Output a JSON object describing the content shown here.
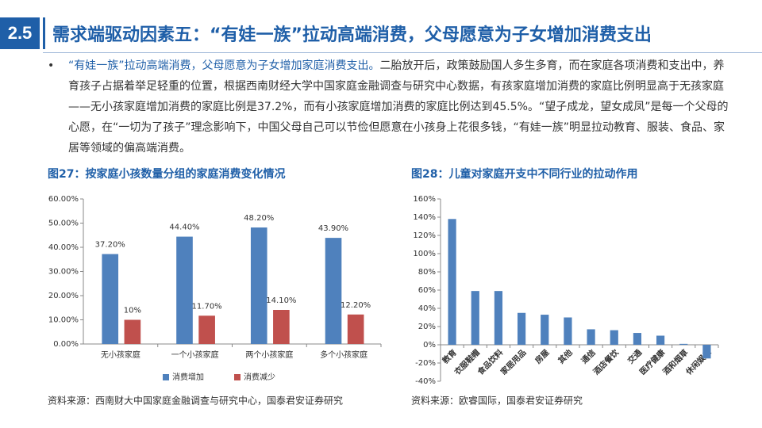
{
  "header": {
    "number": "2.5",
    "title": "需求端驱动因素五：“有娃一族”拉动高端消费，父母愿意为子女增加消费支出"
  },
  "paragraph": {
    "bullet": "•",
    "lead": "“有娃一族”拉动高端消费，父母愿意为子女增加家庭消费支出。",
    "body": "二胎放开后，政策鼓励国人多生多育，而在家庭各项消费和支出中，养育孩子占据着举足轻重的位置，根据西南财经大学中国家庭金融调查与研究中心数据，有孩家庭增加消费的家庭比例明显高于无孩家庭——无小孩家庭增加消费的家庭比例是37.2%，而有小孩家庭增加消费的家庭比例达到45.5%。“望子成龙，望女成凤”是每一个父母的心愿，在“一切为了孩子”理念影响下，中国父母自己可以节俭但愿意在小孩身上花很多钱，“有娃一族”明显拉动教育、服装、食品、家居等领域的偏高端消费。"
  },
  "chart_data": [
    {
      "type": "bar",
      "title": "图27：按家庭小孩数量分组的家庭消费变化情况",
      "categories": [
        "无小孩家庭",
        "一个小孩家庭",
        "两个小孩家庭",
        "多个小孩家庭"
      ],
      "series": [
        {
          "name": "消费增加",
          "color": "#4f81bd",
          "values": [
            37.2,
            44.4,
            48.2,
            43.9
          ],
          "value_labels": [
            "37.20%",
            "44.40%",
            "48.20%",
            "43.90%"
          ]
        },
        {
          "name": "消费减少",
          "color": "#c0504d",
          "values": [
            10,
            11.7,
            14.1,
            12.2
          ],
          "value_labels": [
            "10%",
            "11.70%",
            "14.10%",
            "12.20%"
          ]
        }
      ],
      "ylim": [
        0,
        60
      ],
      "yticks": [
        {
          "value": 0,
          "label": "0.00%"
        },
        {
          "value": 10,
          "label": "10.00%"
        },
        {
          "value": 20,
          "label": "20.00%"
        },
        {
          "value": 30,
          "label": "30.00%"
        },
        {
          "value": 40,
          "label": "40.00%"
        },
        {
          "value": 50,
          "label": "50.00%"
        },
        {
          "value": 60,
          "label": "60.00%"
        }
      ],
      "legend": "bottom",
      "source": "资料来源：西南财大中国家庭金融调查与研究中心，国泰君安证券研究"
    },
    {
      "type": "bar",
      "title": "图28：儿童对家庭开支中不同行业的拉动作用",
      "categories": [
        "教育",
        "衣服鞋帽",
        "食品饮料",
        "家居用品",
        "房屋",
        "其他",
        "通信",
        "酒店餐饮",
        "交通",
        "医疗健康",
        "酒和烟草",
        "休闲娱乐"
      ],
      "color": "#4f81bd",
      "values": [
        138,
        59,
        59,
        35,
        33,
        30,
        17,
        16,
        13,
        10,
        1,
        -15
      ],
      "ylim": [
        -40,
        160
      ],
      "yticks": [
        {
          "value": -40,
          "label": "-40%"
        },
        {
          "value": -20,
          "label": "-20%"
        },
        {
          "value": 0,
          "label": "0%"
        },
        {
          "value": 20,
          "label": "20%"
        },
        {
          "value": 40,
          "label": "40%"
        },
        {
          "value": 60,
          "label": "60%"
        },
        {
          "value": 80,
          "label": "80%"
        },
        {
          "value": 100,
          "label": "100%"
        },
        {
          "value": 120,
          "label": "120%"
        },
        {
          "value": 140,
          "label": "140%"
        },
        {
          "value": 160,
          "label": "160%"
        }
      ],
      "source": "资料来源：欧睿国际，国泰君安证券研究"
    }
  ]
}
